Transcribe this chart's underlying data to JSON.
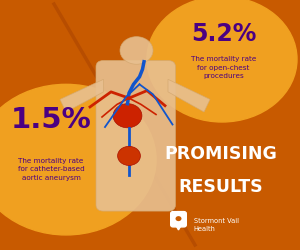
{
  "bg_color": "#C85A00",
  "circle_color": "#F0A020",
  "stat1_pct": "1.5%",
  "stat1_desc": "The mortality rate\nfor catheter-based\naortic aneurysm",
  "stat2_pct": "5.2%",
  "stat2_desc": "The mortality rate\nfor open-chest\nprocedures",
  "headline1": "PROMISING",
  "headline2": "RESULTS",
  "brand": "Stormont Vail\nHealth",
  "text_dark_purple": "#4B0082",
  "text_white": "#FFFFFF",
  "body_skin": "#E8C090",
  "body_skin_edge": "#D4A870",
  "artery_red": "#CC2200",
  "vein_blue": "#1155CC",
  "aneurysm_red": "#CC3300"
}
